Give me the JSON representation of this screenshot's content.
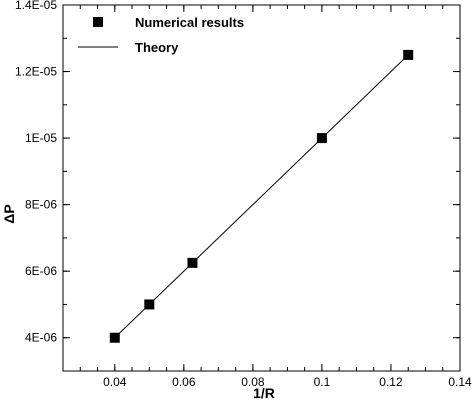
{
  "chart_data": {
    "type": "scatter",
    "xlabel": "1/R",
    "ylabel": "ΔP",
    "xlim": [
      0.025,
      0.14
    ],
    "ylim": [
      3e-06,
      1.4e-05
    ],
    "x_ticks": [
      0.04,
      0.06,
      0.08,
      0.1,
      0.12,
      0.14
    ],
    "x_tick_labels": [
      "0.04",
      "0.06",
      "0.08",
      "0.1",
      "0.12",
      "0.14"
    ],
    "y_ticks": [
      4e-06,
      6e-06,
      8e-06,
      1e-05,
      1.2e-05,
      1.4e-05
    ],
    "y_tick_labels": [
      "4E-06",
      "6E-06",
      "8E-06",
      "1E-05",
      "1.2E-05",
      "1.4E-05"
    ],
    "grid": false,
    "legend_position": "top-left",
    "series": [
      {
        "name": "Numerical results",
        "kind": "scatter",
        "marker": "square",
        "color": "#000000",
        "x": [
          0.04,
          0.05,
          0.0625,
          0.1,
          0.125
        ],
        "y": [
          4e-06,
          5e-06,
          6.25e-06,
          1e-05,
          1.25e-05
        ]
      },
      {
        "name": "Theory",
        "kind": "line",
        "color": "#000000",
        "x": [
          0.04,
          0.125
        ],
        "y": [
          4e-06,
          1.25e-05
        ]
      }
    ]
  }
}
